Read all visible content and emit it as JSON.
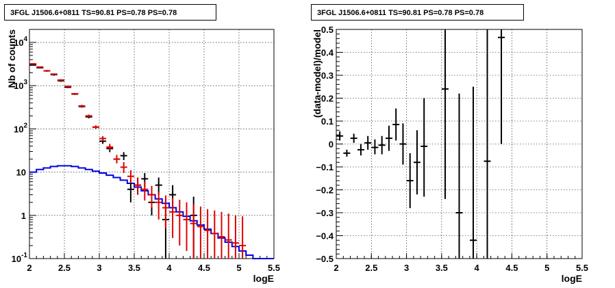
{
  "chart_data": [
    {
      "type": "line",
      "title": "3FGL J1506.6+0811 TS=90.81 PS=0.78 PS=0.78",
      "xlabel": "logE",
      "ylabel": "Nb of counts",
      "xlim": [
        2,
        5.5
      ],
      "ylim": [
        0.1,
        20000
      ],
      "yscale": "log",
      "grid": true,
      "x_ticks": [
        "2",
        "2.5",
        "3",
        "3.5",
        "4",
        "4.5",
        "5",
        "5.5"
      ],
      "y_ticks": [
        {
          "v": 0.1,
          "base": "10",
          "exp": "-1"
        },
        {
          "v": 1,
          "base": "1",
          "exp": ""
        },
        {
          "v": 10,
          "base": "10",
          "exp": ""
        },
        {
          "v": 100,
          "base": "10",
          "exp": "2"
        },
        {
          "v": 1000,
          "base": "10",
          "exp": "3"
        },
        {
          "v": 10000,
          "base": "10",
          "exp": "4"
        }
      ],
      "series": [
        {
          "kind": "data",
          "color": "#000000",
          "points": [
            {
              "x": 2.05,
              "y": 3000,
              "lo": 2900,
              "hi": 3100
            },
            {
              "x": 2.15,
              "y": 2600,
              "lo": 2500,
              "hi": 2700
            },
            {
              "x": 2.25,
              "y": 2200,
              "lo": 2100,
              "hi": 2300
            },
            {
              "x": 2.35,
              "y": 1800,
              "lo": 1700,
              "hi": 1900
            },
            {
              "x": 2.45,
              "y": 1300,
              "lo": 1230,
              "hi": 1370
            },
            {
              "x": 2.55,
              "y": 920,
              "lo": 880,
              "hi": 960
            },
            {
              "x": 2.65,
              "y": 640,
              "lo": 610,
              "hi": 670
            },
            {
              "x": 2.75,
              "y": 330,
              "lo": 310,
              "hi": 350
            },
            {
              "x": 2.85,
              "y": 190,
              "lo": 175,
              "hi": 205
            },
            {
              "x": 2.95,
              "y": 110,
              "lo": 100,
              "hi": 120
            },
            {
              "x": 3.05,
              "y": 52,
              "lo": 45,
              "hi": 60
            },
            {
              "x": 3.15,
              "y": 35,
              "lo": 29,
              "hi": 41
            },
            {
              "x": 3.25,
              "y": 20,
              "lo": 16,
              "hi": 25
            },
            {
              "x": 3.35,
              "y": 24,
              "lo": 19,
              "hi": 29
            },
            {
              "x": 3.45,
              "y": 4,
              "lo": 2,
              "hi": 6.5
            },
            {
              "x": 3.55,
              "y": 5,
              "lo": 3,
              "hi": 7.5
            },
            {
              "x": 3.65,
              "y": 7,
              "lo": 4.5,
              "hi": 9.5
            },
            {
              "x": 3.75,
              "y": 2,
              "lo": 1,
              "hi": 3.5
            },
            {
              "x": 3.85,
              "y": 5,
              "lo": 3,
              "hi": 7.5
            },
            {
              "x": 3.95,
              "y": 0.8,
              "lo": 0.1,
              "hi": 2.5
            },
            {
              "x": 4.05,
              "y": 3,
              "lo": 1.5,
              "hi": 5
            },
            {
              "x": 4.35,
              "y": 1,
              "lo": 0.1,
              "hi": 2.7
            }
          ]
        },
        {
          "kind": "model_points",
          "color": "#e00000",
          "points": [
            {
              "x": 2.05,
              "y": 3200,
              "lo": 3100,
              "hi": 3300
            },
            {
              "x": 2.15,
              "y": 2700,
              "lo": 2600,
              "hi": 2800
            },
            {
              "x": 2.25,
              "y": 2200,
              "lo": 2100,
              "hi": 2300
            },
            {
              "x": 2.35,
              "y": 1850,
              "lo": 1780,
              "hi": 1920
            },
            {
              "x": 2.45,
              "y": 1350,
              "lo": 1290,
              "hi": 1410
            },
            {
              "x": 2.55,
              "y": 960,
              "lo": 920,
              "hi": 1000
            },
            {
              "x": 2.65,
              "y": 650,
              "lo": 620,
              "hi": 680
            },
            {
              "x": 2.75,
              "y": 340,
              "lo": 320,
              "hi": 360
            },
            {
              "x": 2.85,
              "y": 200,
              "lo": 185,
              "hi": 215
            },
            {
              "x": 2.95,
              "y": 110,
              "lo": 100,
              "hi": 120
            },
            {
              "x": 3.05,
              "y": 60,
              "lo": 52,
              "hi": 68
            },
            {
              "x": 3.15,
              "y": 38,
              "lo": 32,
              "hi": 45
            },
            {
              "x": 3.25,
              "y": 20,
              "lo": 16,
              "hi": 25
            },
            {
              "x": 3.35,
              "y": 13,
              "lo": 9.5,
              "hi": 17
            },
            {
              "x": 3.45,
              "y": 8,
              "lo": 5.5,
              "hi": 11
            },
            {
              "x": 3.55,
              "y": 5,
              "lo": 3,
              "hi": 7.5
            },
            {
              "x": 3.65,
              "y": 4,
              "lo": 2.2,
              "hi": 6
            },
            {
              "x": 3.75,
              "y": 3,
              "lo": 1.5,
              "hi": 4.8
            },
            {
              "x": 3.85,
              "y": 2,
              "lo": 0.8,
              "hi": 3.5
            },
            {
              "x": 3.95,
              "y": 1.5,
              "lo": 0.5,
              "hi": 2.9
            },
            {
              "x": 4.05,
              "y": 1.2,
              "lo": 0.3,
              "hi": 2.5
            },
            {
              "x": 4.15,
              "y": 1.0,
              "lo": 0.2,
              "hi": 2.3
            },
            {
              "x": 4.25,
              "y": 0.8,
              "lo": 0.15,
              "hi": 2.0
            },
            {
              "x": 4.35,
              "y": 0.65,
              "lo": 0.1,
              "hi": 1.8
            },
            {
              "x": 4.45,
              "y": 0.55,
              "lo": 0.1,
              "hi": 1.6
            },
            {
              "x": 4.55,
              "y": 0.45,
              "lo": 0.1,
              "hi": 1.4
            },
            {
              "x": 4.65,
              "y": 0.38,
              "lo": 0.1,
              "hi": 1.3
            },
            {
              "x": 4.75,
              "y": 0.32,
              "lo": 0.1,
              "hi": 1.2
            },
            {
              "x": 4.85,
              "y": 0.27,
              "lo": 0.1,
              "hi": 1.1
            },
            {
              "x": 4.95,
              "y": 0.23,
              "lo": 0.1,
              "hi": 1.0
            },
            {
              "x": 5.05,
              "y": 0.2,
              "lo": 0.1,
              "hi": 0.95
            }
          ]
        },
        {
          "kind": "step",
          "color": "#0000dd",
          "x_edges": [
            2.0,
            2.1,
            2.2,
            2.3,
            2.4,
            2.5,
            2.6,
            2.7,
            2.8,
            2.9,
            3.0,
            3.1,
            3.2,
            3.3,
            3.4,
            3.5,
            3.6,
            3.7,
            3.8,
            3.9,
            4.0,
            4.1,
            4.2,
            4.3,
            4.4,
            4.5,
            4.6,
            4.7,
            4.8,
            4.9,
            5.0,
            5.1,
            5.2,
            5.3,
            5.4,
            5.5
          ],
          "values": [
            10,
            11.5,
            12.5,
            13.5,
            14,
            14,
            13.5,
            12.5,
            11.5,
            10.5,
            9.5,
            8.5,
            7.5,
            6.5,
            5.5,
            4.5,
            3.7,
            3.0,
            2.4,
            1.9,
            1.5,
            1.2,
            0.95,
            0.75,
            0.6,
            0.48,
            0.38,
            0.3,
            0.24,
            0.19,
            0.15,
            0.12,
            0.1,
            0.1,
            0.1
          ]
        }
      ]
    },
    {
      "type": "scatter",
      "title": "3FGL J1506.6+0811 TS=90.81 PS=0.78 PS=0.78",
      "xlabel": "logE",
      "ylabel": "(data-model)/model",
      "xlim": [
        2,
        5.5
      ],
      "ylim": [
        -0.5,
        0.5
      ],
      "grid": true,
      "x_ticks": [
        "2",
        "2.5",
        "3",
        "3.5",
        "4",
        "4.5",
        "5",
        "5.5"
      ],
      "y_ticks": [
        "−0.5",
        "−0.4",
        "−0.3",
        "−0.2",
        "−0.1",
        "0",
        "0.1",
        "0.2",
        "0.3",
        "0.4",
        "0.5"
      ],
      "y_tick_values": [
        -0.5,
        -0.4,
        -0.3,
        -0.2,
        -0.1,
        0,
        0.1,
        0.2,
        0.3,
        0.4,
        0.5
      ],
      "series": [
        {
          "kind": "data",
          "color": "#000000",
          "points": [
            {
              "x": 2.05,
              "y": 0.035,
              "lo": 0.015,
              "hi": 0.055
            },
            {
              "x": 2.15,
              "y": -0.04,
              "lo": -0.055,
              "hi": -0.025
            },
            {
              "x": 2.25,
              "y": 0.025,
              "lo": 0.005,
              "hi": 0.045
            },
            {
              "x": 2.35,
              "y": -0.025,
              "lo": -0.05,
              "hi": 0.0
            },
            {
              "x": 2.45,
              "y": 0.005,
              "lo": -0.025,
              "hi": 0.035
            },
            {
              "x": 2.55,
              "y": -0.015,
              "lo": -0.045,
              "hi": 0.02
            },
            {
              "x": 2.65,
              "y": -0.005,
              "lo": -0.045,
              "hi": 0.035
            },
            {
              "x": 2.75,
              "y": 0.025,
              "lo": -0.03,
              "hi": 0.08
            },
            {
              "x": 2.85,
              "y": 0.085,
              "lo": 0.015,
              "hi": 0.155
            },
            {
              "x": 2.95,
              "y": 0.0,
              "lo": -0.09,
              "hi": 0.09
            },
            {
              "x": 3.05,
              "y": -0.16,
              "lo": -0.28,
              "hi": -0.04
            },
            {
              "x": 3.15,
              "y": -0.08,
              "lo": -0.22,
              "hi": 0.06
            },
            {
              "x": 3.25,
              "y": -0.01,
              "lo": -0.23,
              "hi": 0.2
            },
            {
              "x": 3.55,
              "y": 0.24,
              "lo": -0.24,
              "hi": 0.5
            },
            {
              "x": 3.75,
              "y": -0.3,
              "lo": -0.5,
              "hi": 0.22
            },
            {
              "x": 3.95,
              "y": -0.42,
              "lo": -0.5,
              "hi": 0.25
            },
            {
              "x": 4.15,
              "y": -0.075,
              "lo": -0.5,
              "hi": 0.5
            },
            {
              "x": 4.35,
              "y": 0.465,
              "lo": 0.0,
              "hi": 0.5
            }
          ]
        }
      ]
    }
  ]
}
